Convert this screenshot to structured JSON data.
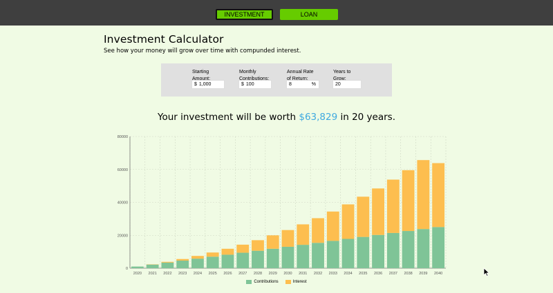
{
  "nav": {
    "investment_label": "INVESTMENT",
    "loan_label": "LOAN"
  },
  "page": {
    "title": "Investment Calculator",
    "subtitle": "See how your money will grow over time with compunded interest."
  },
  "form": {
    "starting_label_1": "Starting",
    "starting_label_2": "Amount:",
    "starting_prefix": "$",
    "starting_value": "1,000",
    "monthly_label_1": "Monthly",
    "monthly_label_2": "Contributions:",
    "monthly_prefix": "$",
    "monthly_value": "100",
    "rate_label_1": "Annual Rate",
    "rate_label_2": "of Return:",
    "rate_value": "8",
    "rate_suffix": "%",
    "years_label_1": "Years to",
    "years_label_2": "Grow:",
    "years_value": "20"
  },
  "result": {
    "prefix": "Your investment will be worth ",
    "amount": "$63,829",
    "suffix": " in 20 years."
  },
  "colors": {
    "contributions": "#7fc497",
    "interest": "#fdbe4f",
    "accent": "#66cc00",
    "amount": "#3fa9e0"
  },
  "chart_data": {
    "type": "bar",
    "stacked": true,
    "categories": [
      "2020",
      "2021",
      "2022",
      "2023",
      "2024",
      "2025",
      "2026",
      "2027",
      "2028",
      "2029",
      "2030",
      "2031",
      "2032",
      "2033",
      "2034",
      "2035",
      "2036",
      "2037",
      "2038",
      "2039",
      "2040"
    ],
    "series": [
      {
        "name": "Contributions",
        "values": [
          1000,
          2200,
          3400,
          4600,
          5800,
          7000,
          8200,
          9400,
          10600,
          11800,
          13000,
          14200,
          15400,
          16600,
          17800,
          19000,
          20200,
          21400,
          22600,
          23800,
          25000
        ]
      },
      {
        "name": "Interest",
        "values": [
          0,
          163,
          478,
          979,
          1659,
          2530,
          3603,
          4892,
          6408,
          8160,
          10164,
          12431,
          14977,
          17817,
          20964,
          24434,
          28242,
          32407,
          36943,
          41870,
          38829
        ]
      }
    ],
    "yticks": [
      "0",
      "20000",
      "40000",
      "60000",
      "80000"
    ],
    "ylim": [
      0,
      80000
    ],
    "grid": true,
    "legend_position": "bottom"
  }
}
